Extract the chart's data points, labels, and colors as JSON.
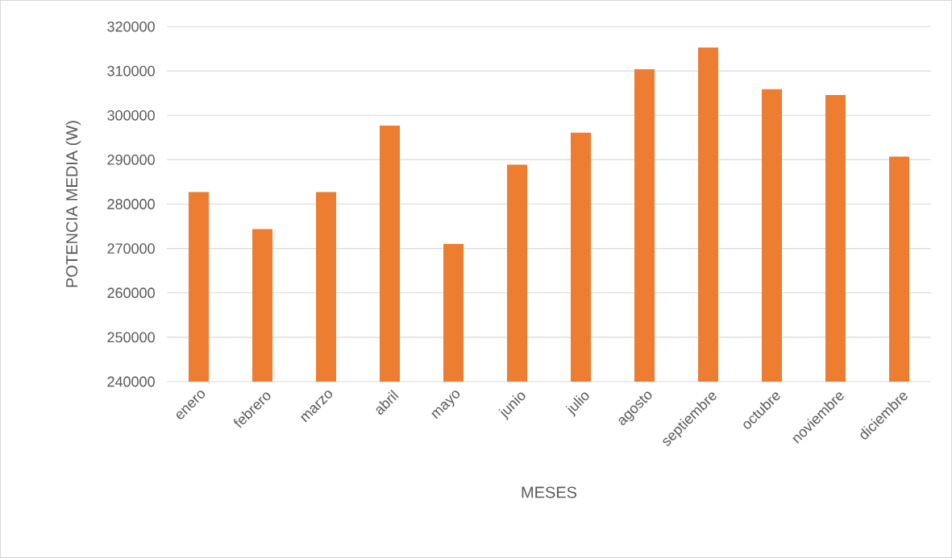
{
  "chart_data": {
    "type": "bar",
    "xlabel": "MESES",
    "ylabel": "POTENCIA MEDIA (W)",
    "categories": [
      "enero",
      "febrero",
      "marzo",
      "abril",
      "mayo",
      "junio",
      "julio",
      "agosto",
      "septiembre",
      "octubre",
      "noviembre",
      "diciembre"
    ],
    "values": [
      282700,
      274400,
      282700,
      297700,
      271000,
      288900,
      296100,
      310400,
      315300,
      305900,
      304600,
      290700
    ],
    "color": "#ed7d31",
    "ylim": [
      240000,
      320000
    ],
    "yticks": [
      240000,
      250000,
      260000,
      270000,
      280000,
      290000,
      300000,
      310000,
      320000
    ],
    "grid": "y"
  }
}
